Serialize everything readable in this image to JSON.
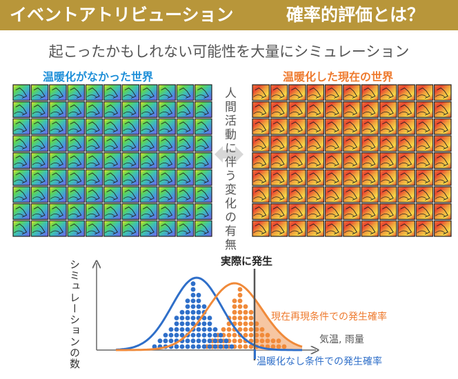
{
  "header": {
    "title_left": "イベントアトリビューション",
    "title_right": "確率的評価とは？"
  },
  "subtitle": "起こったかもしれない可能性を大量にシミュレーション",
  "panels": {
    "left": {
      "label": "温暖化がなかった世界"
    },
    "right": {
      "label": "温暖化した現在の世界"
    }
  },
  "center_label": "人間活動に伴う変化の有無",
  "chart": {
    "ylabel": "シミュレーションの数",
    "xlabel": "気温, 雨量",
    "event_label": "実際に発生",
    "prob_current": "現在再現条件での発生確率",
    "prob_no_warming": "温暖化なし条件での発生確率"
  },
  "colors": {
    "banner": "#b8963a",
    "blue": "#2f6fc9",
    "orange": "#f08a3a",
    "label_blue": "#1f8fd8",
    "label_orange": "#ee7a2e"
  },
  "chart_data": {
    "type": "scatter",
    "series": [
      {
        "name": "温暖化なし",
        "color": "#2f6fc9",
        "distribution": "normal"
      },
      {
        "name": "現在",
        "color": "#f08a3a",
        "distribution": "normal"
      }
    ]
  }
}
